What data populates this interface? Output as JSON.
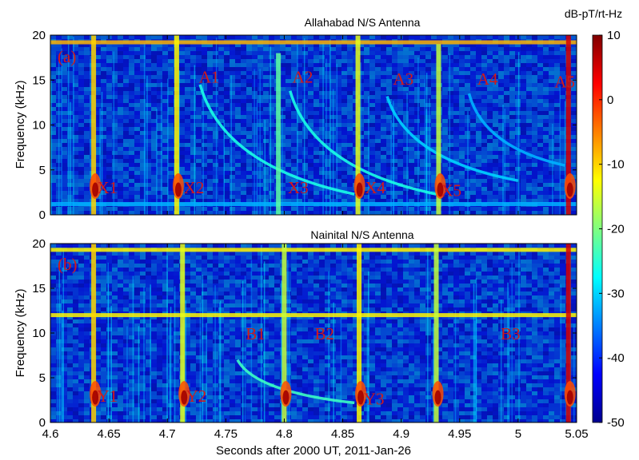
{
  "chart_data": [
    {
      "type": "heatmap",
      "title": "Allahabad N/S Antenna",
      "panel_label": "(a)",
      "xlabel": "",
      "ylabel": "Frequency (kHz)",
      "xlim": [
        4.6,
        5.05
      ],
      "ylim": [
        0,
        20
      ],
      "yticks": [
        "0",
        "5",
        "10",
        "15",
        "20"
      ],
      "background_db": -42,
      "lines": [
        {
          "kind": "horizontal",
          "f": 19.2,
          "db": -8
        },
        {
          "kind": "horizontal",
          "f": 1.2,
          "db": -32
        }
      ],
      "sferics": [
        {
          "t": 4.637,
          "f_top": 20,
          "db": -10,
          "hot": true
        },
        {
          "t": 4.708,
          "f_top": 20,
          "db": -12,
          "hot": true
        },
        {
          "t": 4.795,
          "f_top": 18,
          "db": -22,
          "hot": false
        },
        {
          "t": 4.863,
          "f_top": 20,
          "db": -14,
          "hot": true
        },
        {
          "t": 4.932,
          "f_top": 19,
          "db": -16,
          "hot": true
        },
        {
          "t": 5.043,
          "f_top": 20,
          "db": 5,
          "hot": true
        }
      ],
      "dispersion": [
        {
          "t0": 4.728,
          "f0": 14.5,
          "t1": 4.86,
          "f1": 2.3,
          "db": -26
        },
        {
          "t0": 4.805,
          "f0": 13.8,
          "t1": 4.93,
          "f1": 2.3,
          "db": -26
        },
        {
          "t0": 4.888,
          "f0": 13.2,
          "t1": 5.0,
          "f1": 3.8,
          "db": -30
        },
        {
          "t0": 4.958,
          "f0": 13.5,
          "t1": 5.04,
          "f1": 5.5,
          "db": -32
        }
      ],
      "annotations": [
        {
          "text": "A1",
          "t": 4.727,
          "f": 14.7
        },
        {
          "text": "A2",
          "t": 4.807,
          "f": 14.7
        },
        {
          "text": "A3",
          "t": 4.893,
          "f": 14.5
        },
        {
          "text": "A4",
          "t": 4.965,
          "f": 14.5
        },
        {
          "text": "A5",
          "t": 5.031,
          "f": 14.2
        },
        {
          "text": "X1",
          "t": 4.64,
          "f": 2.4
        },
        {
          "text": "X2",
          "t": 4.714,
          "f": 2.4
        },
        {
          "text": "X3",
          "t": 4.803,
          "f": 2.4
        },
        {
          "text": "X4",
          "t": 4.869,
          "f": 2.4
        },
        {
          "text": "X5",
          "t": 4.934,
          "f": 2.1
        }
      ]
    },
    {
      "type": "heatmap",
      "title": "Nainital N/S Antenna",
      "panel_label": "(b)",
      "xlabel": "Seconds after 2000 UT, 2011-Jan-26",
      "ylabel": "Frequency (kHz)",
      "xlim": [
        4.6,
        5.05
      ],
      "ylim": [
        0,
        20
      ],
      "xticks": [
        "4.6",
        "4.65",
        "4.7",
        "4.75",
        "4.8",
        "4.85",
        "4.9",
        "4.95",
        "5",
        "5.05"
      ],
      "yticks": [
        "0",
        "5",
        "10",
        "15",
        "20"
      ],
      "background_db": -42,
      "lines": [
        {
          "kind": "horizontal",
          "f": 19.3,
          "db": -12
        },
        {
          "kind": "horizontal",
          "f": 12.0,
          "db": -12
        }
      ],
      "sferics": [
        {
          "t": 4.637,
          "f_top": 20,
          "db": -10,
          "hot": true
        },
        {
          "t": 4.713,
          "f_top": 20,
          "db": -14,
          "hot": true
        },
        {
          "t": 4.8,
          "f_top": 20,
          "db": -16,
          "hot": true
        },
        {
          "t": 4.864,
          "f_top": 20,
          "db": -12,
          "hot": true
        },
        {
          "t": 4.93,
          "f_top": 20,
          "db": -16,
          "hot": true
        },
        {
          "t": 5.043,
          "f_top": 20,
          "db": 5,
          "hot": true
        }
      ],
      "dispersion": [
        {
          "t0": 4.76,
          "f0": 7.0,
          "t1": 4.86,
          "f1": 2.2,
          "db": -24
        }
      ],
      "annotations": [
        {
          "text": "B1",
          "t": 4.767,
          "f": 9.3
        },
        {
          "text": "B2",
          "t": 4.826,
          "f": 9.3
        },
        {
          "text": "B3",
          "t": 4.985,
          "f": 9.3
        },
        {
          "text": "Y1",
          "t": 4.64,
          "f": 2.3
        },
        {
          "text": "Y2",
          "t": 4.716,
          "f": 2.3
        },
        {
          "text": "Y3",
          "t": 4.868,
          "f": 2.0
        }
      ]
    }
  ],
  "colorbar": {
    "title": "dB-pT/rt-Hz",
    "range": [
      -50,
      10
    ],
    "ticks": [
      "10",
      "0",
      "-10",
      "-20",
      "-30",
      "-40",
      "-50"
    ],
    "colormap": "jet"
  }
}
